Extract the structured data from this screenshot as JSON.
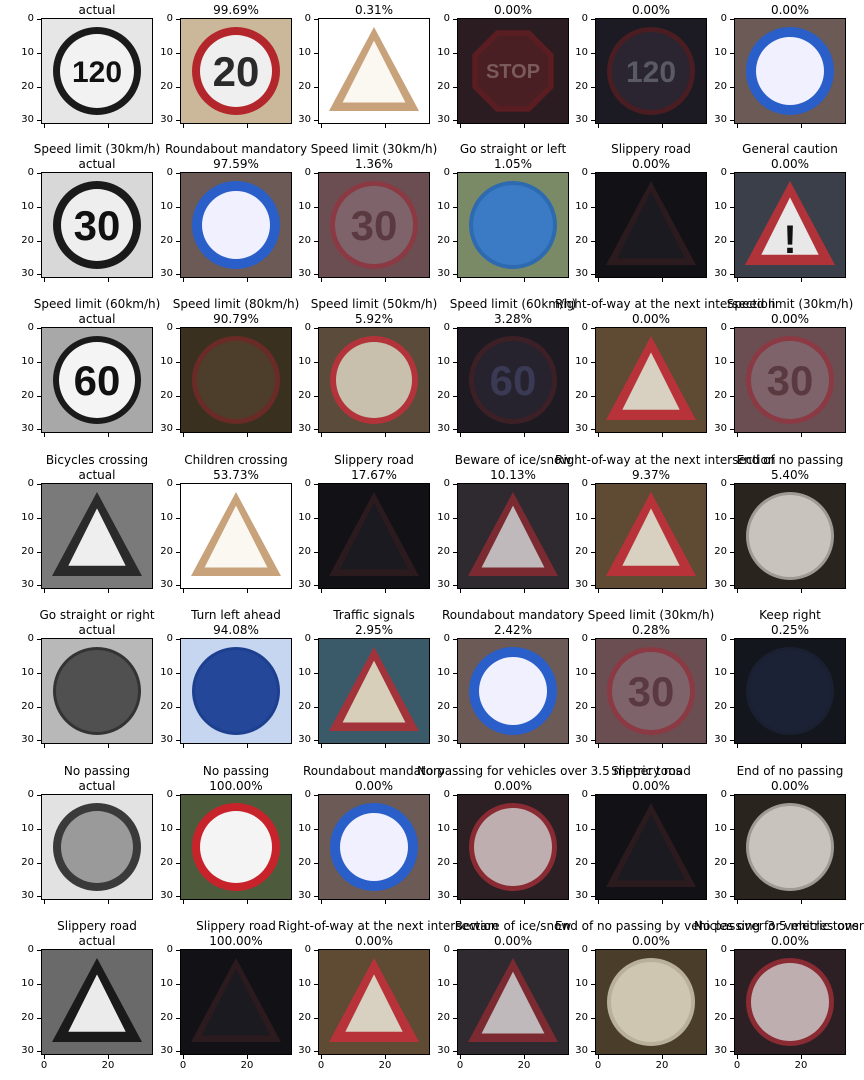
{
  "figure": {
    "rows": [
      {
        "cells": [
          {
            "label": "",
            "value": "actual",
            "bg": "#e6e6e6",
            "grayscale": true,
            "ring": "#1a1a1a",
            "ring_w": 7,
            "face": "#f2f2f2",
            "glyph": "120",
            "glyph_color": "#111111",
            "shape": "circle"
          },
          {
            "label": "",
            "value": "99.69%",
            "bg": "#cbb89a",
            "ring": "#b3262b",
            "ring_w": 8,
            "face": "#efefef",
            "glyph": "20",
            "glyph_color": "#2a2a2a",
            "shape": "circle"
          },
          {
            "label": "",
            "value": "0.31%",
            "bg": "#ffffff",
            "ring": "#c7a27a",
            "ring_w": 5,
            "face": "#fbf7f1",
            "glyph": "",
            "glyph_color": "#3a3a3a",
            "shape": "triangle"
          },
          {
            "label": "",
            "value": "0.00%",
            "bg": "#2a1c20",
            "ring": "#5a1d22",
            "ring_w": 5,
            "face": "#4a1f24",
            "glyph": "STOP",
            "glyph_color": "#7a5a5a",
            "shape": "octagon"
          },
          {
            "label": "",
            "value": "0.00%",
            "bg": "#1c1a22",
            "ring": "#4a1d22",
            "ring_w": 5,
            "face": "#2a2530",
            "glyph": "120",
            "glyph_color": "#5a5a66",
            "shape": "circle"
          },
          {
            "label": "",
            "value": "0.00%",
            "bg": "#6b5a55",
            "ring": "#2a5ec9",
            "ring_w": 10,
            "face": "#f0f0ff",
            "glyph": "",
            "glyph_color": "#2a5ec9",
            "shape": "circle"
          }
        ]
      },
      {
        "cells": [
          {
            "label": "Speed limit (30km/h)",
            "value": "actual",
            "bg": "#d8d8d8",
            "grayscale": true,
            "ring": "#1a1a1a",
            "ring_w": 8,
            "face": "#eeeeee",
            "glyph": "30",
            "glyph_color": "#111111",
            "shape": "circle"
          },
          {
            "label": "Roundabout mandatory",
            "value": "97.59%",
            "bg": "#6b5a55",
            "ring": "#2a5ec9",
            "ring_w": 10,
            "face": "#f0f0ff",
            "glyph": "",
            "glyph_color": "#2a5ec9",
            "shape": "circle"
          },
          {
            "label": "Speed limit (30km/h)",
            "value": "1.36%",
            "bg": "#6a4e52",
            "ring": "#8b3a44",
            "ring_w": 5,
            "face": "#7e646a",
            "glyph": "30",
            "glyph_color": "#5a3a40",
            "shape": "circle"
          },
          {
            "label": "Go straight or left",
            "value": "1.05%",
            "bg": "#7a8a66",
            "ring": "#2d6ab0",
            "ring_w": 4,
            "face": "#3b7bc6",
            "glyph": "",
            "glyph_color": "#e6e6e6",
            "shape": "circle"
          },
          {
            "label": "Slippery road",
            "value": "0.00%",
            "bg": "#121216",
            "ring": "#2b1a1e",
            "ring_w": 4,
            "face": "#1a1a20",
            "glyph": "",
            "glyph_color": "#333333",
            "shape": "triangle"
          },
          {
            "label": "General caution",
            "value": "0.00%",
            "bg": "#3b3f4a",
            "ring": "#b0333a",
            "ring_w": 6,
            "face": "#e8e8e8",
            "glyph": "!",
            "glyph_color": "#111111",
            "shape": "triangle"
          }
        ]
      },
      {
        "cells": [
          {
            "label": "Speed limit (60km/h)",
            "value": "actual",
            "bg": "#a8a8a8",
            "grayscale": true,
            "ring": "#1a1a1a",
            "ring_w": 6,
            "face": "#f4f4f4",
            "glyph": "60",
            "glyph_color": "#111111",
            "shape": "circle"
          },
          {
            "label": "Speed limit (80km/h)",
            "value": "90.79%",
            "bg": "#3a3020",
            "ring": "#6a2a26",
            "ring_w": 5,
            "face": "#4d3e2c",
            "glyph": "",
            "glyph_color": "#6a6a4a",
            "shape": "circle"
          },
          {
            "label": "Speed limit (50km/h)",
            "value": "5.92%",
            "bg": "#5a4b3a",
            "ring": "#b2333a",
            "ring_w": 6,
            "face": "#c8c0ad",
            "glyph": "",
            "glyph_color": "#6a6a80",
            "shape": "circle"
          },
          {
            "label": "Speed limit (60km/h)",
            "value": "3.28%",
            "bg": "#1d1a22",
            "ring": "#3d1f26",
            "ring_w": 5,
            "face": "#26222e",
            "glyph": "60",
            "glyph_color": "#3a3a55",
            "shape": "circle"
          },
          {
            "label": "Right-of-way at the next intersection",
            "value": "0.00%",
            "bg": "#5f4a34",
            "ring": "#b8323a",
            "ring_w": 6,
            "face": "#d8d0c0",
            "glyph": "",
            "glyph_color": "#1a1a1a",
            "shape": "triangle"
          },
          {
            "label": "Speed limit (30km/h)",
            "value": "0.00%",
            "bg": "#6a4e52",
            "ring": "#8b3a44",
            "ring_w": 5,
            "face": "#7e646a",
            "glyph": "30",
            "glyph_color": "#5a3a40",
            "shape": "circle"
          }
        ]
      },
      {
        "cells": [
          {
            "label": "Bicycles crossing",
            "value": "actual",
            "bg": "#7a7a7a",
            "grayscale": true,
            "ring": "#2a2a2a",
            "ring_w": 6,
            "face": "#eeeeee",
            "glyph": "",
            "glyph_color": "#222222",
            "shape": "triangle"
          },
          {
            "label": "Children crossing",
            "value": "53.73%",
            "bg": "#ffffff",
            "ring": "#c7a27a",
            "ring_w": 5,
            "face": "#fbf7f1",
            "glyph": "",
            "glyph_color": "#3a3a3a",
            "shape": "triangle"
          },
          {
            "label": "Slippery road",
            "value": "17.67%",
            "bg": "#121216",
            "ring": "#2b1a1e",
            "ring_w": 4,
            "face": "#1a1a20",
            "glyph": "",
            "glyph_color": "#333333",
            "shape": "triangle"
          },
          {
            "label": "Beware of ice/snow",
            "value": "10.13%",
            "bg": "#2e2a30",
            "ring": "#7a2a30",
            "ring_w": 5,
            "face": "#bfb9bb",
            "glyph": "",
            "glyph_color": "#333333",
            "shape": "triangle"
          },
          {
            "label": "Right-of-way at the next intersection",
            "value": "9.37%",
            "bg": "#5f4a34",
            "ring": "#b8323a",
            "ring_w": 6,
            "face": "#d8d0c0",
            "glyph": "",
            "glyph_color": "#1a1a1a",
            "shape": "triangle"
          },
          {
            "label": "End of no passing",
            "value": "5.40%",
            "bg": "#2a241f",
            "ring": "#a09a96",
            "ring_w": 3,
            "face": "#c9c3bd",
            "glyph": "",
            "glyph_color": "#3a3a3a",
            "shape": "circle"
          }
        ]
      },
      {
        "cells": [
          {
            "label": "Go straight or right",
            "value": "actual",
            "bg": "#b8b8b8",
            "grayscale": true,
            "ring": "#333333",
            "ring_w": 3,
            "face": "#505050",
            "glyph": "",
            "glyph_color": "#f2f2f2",
            "shape": "circle"
          },
          {
            "label": "Turn left ahead",
            "value": "94.08%",
            "bg": "#c6d6f0",
            "ring": "#1d3f8f",
            "ring_w": 3,
            "face": "#24479a",
            "glyph": "",
            "glyph_color": "#dce4f4",
            "shape": "circle"
          },
          {
            "label": "Traffic signals",
            "value": "2.95%",
            "bg": "#3a5a6a",
            "ring": "#a2333a",
            "ring_w": 5,
            "face": "#d8cfbb",
            "glyph": "",
            "glyph_color": "#c06a20",
            "shape": "triangle"
          },
          {
            "label": "Roundabout mandatory",
            "value": "2.42%",
            "bg": "#6b5a55",
            "ring": "#2a5ec9",
            "ring_w": 10,
            "face": "#f0f0ff",
            "glyph": "",
            "glyph_color": "#2a5ec9",
            "shape": "circle"
          },
          {
            "label": "Speed limit (30km/h)",
            "value": "0.28%",
            "bg": "#6a4e52",
            "ring": "#8b3a44",
            "ring_w": 5,
            "face": "#7e646a",
            "glyph": "30",
            "glyph_color": "#5a3a40",
            "shape": "circle"
          },
          {
            "label": "Keep right",
            "value": "0.25%",
            "bg": "#14161e",
            "ring": "#1a2030",
            "ring_w": 3,
            "face": "#1c2236",
            "glyph": "",
            "glyph_color": "#2a3050",
            "shape": "circle"
          }
        ]
      },
      {
        "cells": [
          {
            "label": "No passing",
            "value": "actual",
            "bg": "#e2e2e2",
            "grayscale": true,
            "ring": "#3a3a3a",
            "ring_w": 8,
            "face": "#9a9a9a",
            "glyph": "",
            "glyph_color": "#2a2a2a",
            "shape": "circle"
          },
          {
            "label": "No passing",
            "value": "100.00%",
            "bg": "#4e5a3c",
            "ring": "#c8232b",
            "ring_w": 8,
            "face": "#f4f4f4",
            "glyph": "",
            "glyph_color": "#b0202a",
            "shape": "circle"
          },
          {
            "label": "Roundabout mandatory",
            "value": "0.00%",
            "bg": "#6b5a55",
            "ring": "#2a5ec9",
            "ring_w": 10,
            "face": "#f0f0ff",
            "glyph": "",
            "glyph_color": "#2a5ec9",
            "shape": "circle"
          },
          {
            "label": "No passing for vehicles over 3.5 metric tons",
            "value": "0.00%",
            "bg": "#2c2024",
            "ring": "#8a2a32",
            "ring_w": 5,
            "face": "#bfaeb0",
            "glyph": "",
            "glyph_color": "#5a2a2a",
            "shape": "circle"
          },
          {
            "label": "Slippery road",
            "value": "0.00%",
            "bg": "#121216",
            "ring": "#2b1a1e",
            "ring_w": 4,
            "face": "#1a1a20",
            "glyph": "",
            "glyph_color": "#333333",
            "shape": "triangle"
          },
          {
            "label": "End of no passing",
            "value": "0.00%",
            "bg": "#2a241f",
            "ring": "#a09a96",
            "ring_w": 3,
            "face": "#c9c3bd",
            "glyph": "",
            "glyph_color": "#3a3a3a",
            "shape": "circle"
          }
        ]
      },
      {
        "cells": [
          {
            "label": "Slippery road",
            "value": "actual",
            "bg": "#6a6a6a",
            "grayscale": true,
            "ring": "#1a1a1a",
            "ring_w": 6,
            "face": "#ebebeb",
            "glyph": "",
            "glyph_color": "#111111",
            "shape": "triangle"
          },
          {
            "label": "Slippery road",
            "value": "100.00%",
            "bg": "#121216",
            "ring": "#2b1a1e",
            "ring_w": 4,
            "face": "#1a1a20",
            "glyph": "",
            "glyph_color": "#333333",
            "shape": "triangle"
          },
          {
            "label": "Right-of-way at the next intersection",
            "value": "0.00%",
            "bg": "#5f4a34",
            "ring": "#b8323a",
            "ring_w": 6,
            "face": "#d8d0c0",
            "glyph": "",
            "glyph_color": "#1a1a1a",
            "shape": "triangle"
          },
          {
            "label": "Beware of ice/snow",
            "value": "0.00%",
            "bg": "#2e2a30",
            "ring": "#7a2a30",
            "ring_w": 5,
            "face": "#bfb9bb",
            "glyph": "",
            "glyph_color": "#333333",
            "shape": "triangle"
          },
          {
            "label": "End of no passing by vehicles over 3.5 metric tons",
            "value": "0.00%",
            "bg": "#4a3e2a",
            "ring": "#b8b09a",
            "ring_w": 4,
            "face": "#cfc6b2",
            "glyph": "",
            "glyph_color": "#3a3a3a",
            "shape": "circle"
          },
          {
            "label": "No passing for vehicles over 3.5 metric tons",
            "value": "0.00%",
            "bg": "#2c2024",
            "ring": "#8a2a32",
            "ring_w": 5,
            "face": "#bfaeb0",
            "glyph": "",
            "glyph_color": "#5a2a2a",
            "shape": "circle"
          }
        ]
      }
    ],
    "ytick_labels": [
      "0",
      "10",
      "20",
      "30"
    ],
    "xtick_labels": [
      "0",
      "20"
    ]
  }
}
